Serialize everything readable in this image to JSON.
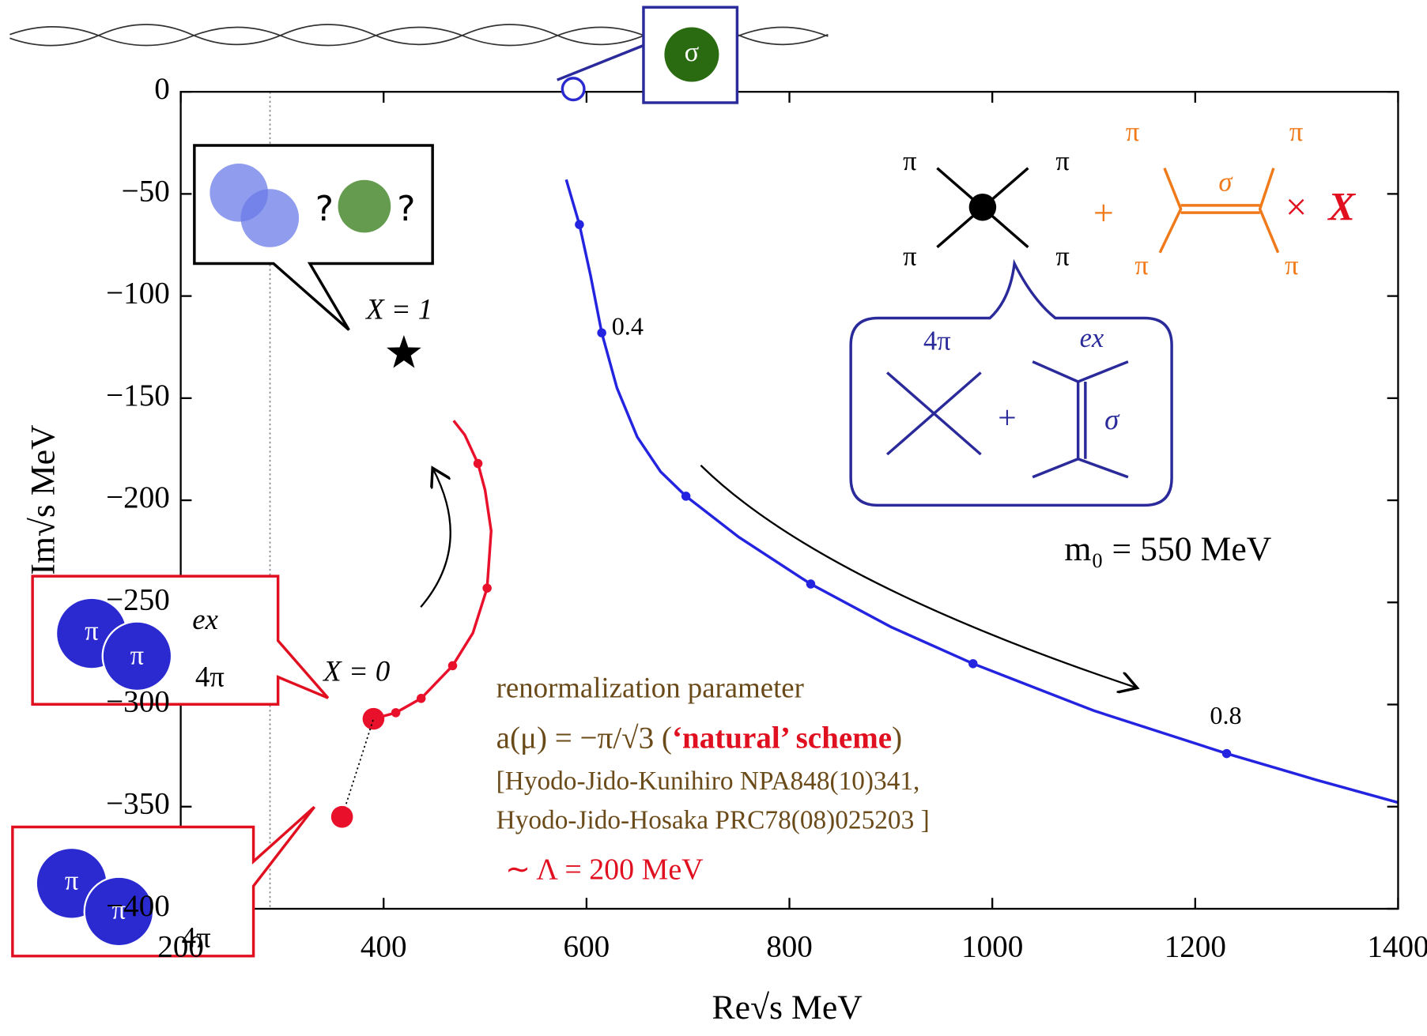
{
  "chart_data": {
    "type": "line",
    "x_label": "Re√s MeV",
    "y_label": "Im√s MeV",
    "xlim": [
      200,
      1400
    ],
    "xticks": [
      200,
      400,
      600,
      800,
      1000,
      1200,
      1400
    ],
    "ylim": [
      -400,
      0
    ],
    "yticks": [
      {
        "value": 0,
        "label": "0"
      },
      {
        "value": -50,
        "label": "−50"
      },
      {
        "value": -100,
        "label": "−100"
      },
      {
        "value": -150,
        "label": "−150"
      },
      {
        "value": -200,
        "label": "−200"
      },
      {
        "value": -250,
        "label": "−250"
      },
      {
        "value": -300,
        "label": "−300"
      },
      {
        "value": -350,
        "label": "−350"
      },
      {
        "value": -400,
        "label": "−400"
      }
    ],
    "ref_x": 288,
    "series": [
      {
        "color": "#2424e0",
        "style": "solid",
        "x": [
          580,
          593,
          604,
          615,
          630,
          650,
          673,
          698,
          750,
          821,
          900,
          981,
          1100,
          1231,
          1320,
          1400
        ],
        "values": [
          -43,
          -65,
          -90,
          -118,
          -145,
          -169,
          -186,
          -198,
          -218,
          -241,
          -262,
          -280,
          -303,
          -324,
          -337,
          -348
        ],
        "marker_x": [
          593,
          615,
          698,
          821,
          981,
          1231
        ],
        "marker_values": [
          -65,
          -118,
          -198,
          -241,
          -280,
          -324
        ]
      },
      {
        "color": "#e8102a",
        "style": "solid",
        "x": [
          390,
          412,
          437,
          468,
          488,
          502,
          506,
          500,
          493,
          480,
          469
        ],
        "values": [
          -307,
          -304,
          -297,
          -281,
          -265,
          -243,
          -215,
          -195,
          -182,
          -168,
          -161
        ],
        "marker_x": [
          390,
          412,
          437,
          468,
          502,
          493
        ],
        "marker_values": [
          -307,
          -304,
          -297,
          -281,
          -243,
          -182
        ]
      },
      {
        "color": "#000000",
        "style": "dotted",
        "x": [
          359,
          390
        ],
        "values": [
          -355,
          -307
        ],
        "marker_x": [
          359
        ],
        "marker_values": [
          -355
        ]
      }
    ],
    "star": {
      "x": 420,
      "value": -128,
      "label": "X = 1"
    },
    "sigma_pole": {
      "x": 552,
      "value": 0
    },
    "labels": {
      "x0": "X = 0",
      "p04": "0.4",
      "p08": "0.8",
      "m0": "m₀ = 550 MeV",
      "renorm": "renormalization parameter",
      "a1": "a(μ) = −π/√3 (",
      "a2": "‘natural’ scheme",
      "a3": ")",
      "ref1": "[Hyodo-Jido-Kunihiro NPA848(10)341,",
      "ref2": " Hyodo-Jido-Hosaka PRC78(08)025203 ]",
      "cutoff": "∼ Λ = 200 MeV"
    },
    "diagrams": {
      "pi": "π",
      "sigma": "σ",
      "four_pi": "4π",
      "ex": "ex",
      "q": "?",
      "plus": "+",
      "times": "×",
      "X": "X"
    }
  }
}
